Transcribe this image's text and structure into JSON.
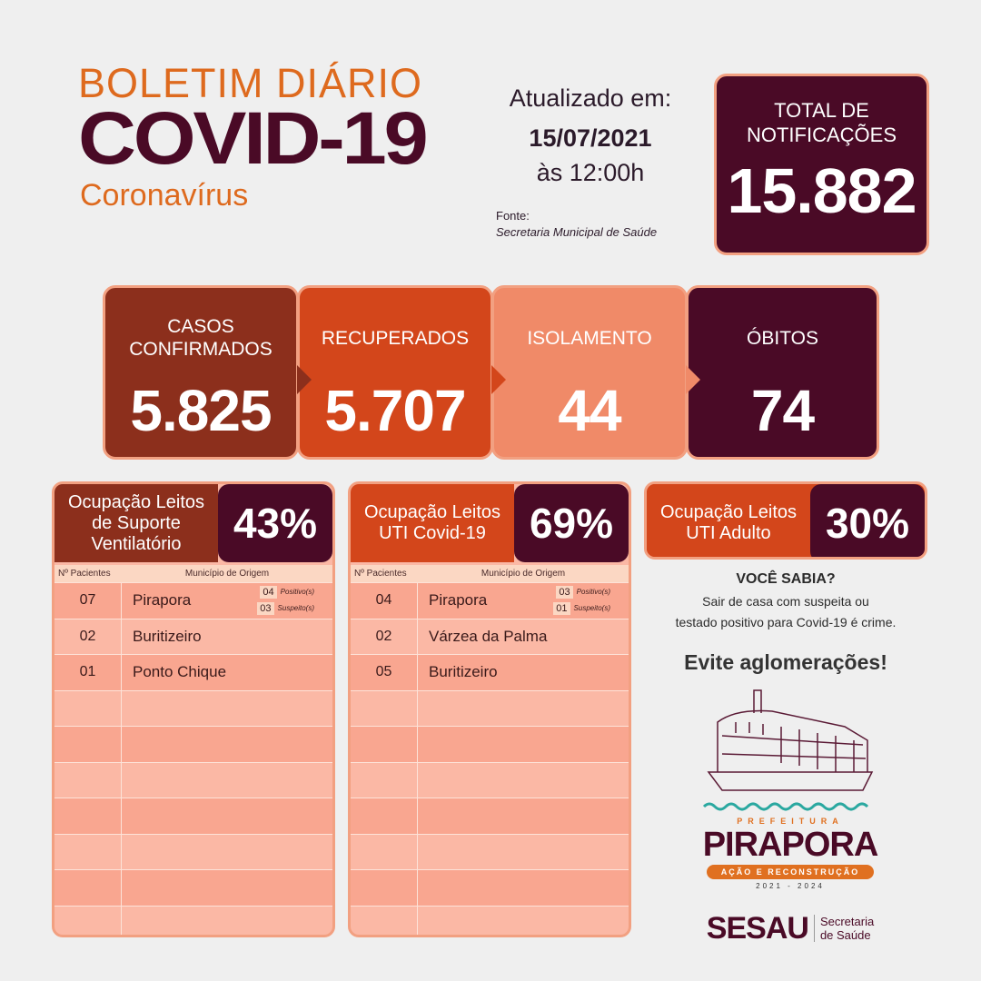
{
  "header": {
    "line1": "BOLETIM DIÁRIO",
    "line2": "COVID-19",
    "line3": "Coronavírus"
  },
  "update": {
    "label": "Atualizado em:",
    "date": "15/07/2021",
    "time": "às 12:00h",
    "source_label": "Fonte:",
    "source": "Secretaria Municipal de Saúde"
  },
  "total": {
    "label1": "TOTAL DE",
    "label2": "NOTIFICAÇÕES",
    "value": "15.882"
  },
  "cards": [
    {
      "label": "CASOS CONFIRMADOS",
      "value": "5.825",
      "color": "#8c2f1c"
    },
    {
      "label": "RECUPERADOS",
      "value": "5.707",
      "color": "#d3461b"
    },
    {
      "label": "ISOLAMENTO",
      "value": "44",
      "color": "#f08a68"
    },
    {
      "label": "ÓBITOS",
      "value": "74",
      "color": "#4a0a26"
    }
  ],
  "occupancy": [
    {
      "label": "Ocupação Leitos de Suporte Ventilatório",
      "percent": "43%",
      "percent_value": 43,
      "color": "#8c2f1c",
      "col1": "Nº Pacientes",
      "col2": "Município de Origem",
      "rows": [
        {
          "n": "07",
          "city": "Pirapora",
          "pos": "04",
          "pos_label": "Positivo(s)",
          "sus": "03",
          "sus_label": "Suspeito(s)"
        },
        {
          "n": "02",
          "city": "Buritizeiro"
        },
        {
          "n": "01",
          "city": "Ponto Chique"
        }
      ]
    },
    {
      "label": "Ocupação Leitos UTI Covid-19",
      "percent": "69%",
      "percent_value": 69,
      "color": "#d3461b",
      "col1": "Nº Pacientes",
      "col2": "Município de Origem",
      "rows": [
        {
          "n": "04",
          "city": "Pirapora",
          "pos": "03",
          "pos_label": "Positivo(s)",
          "sus": "01",
          "sus_label": "Suspeito(s)"
        },
        {
          "n": "02",
          "city": "Várzea da Palma"
        },
        {
          "n": "05",
          "city": "Buritizeiro"
        }
      ]
    },
    {
      "label": "Ocupação Leitos UTI Adulto",
      "percent": "30%",
      "percent_value": 30,
      "color": "#d3461b"
    }
  ],
  "info": {
    "title": "VOCÊ SABIA?",
    "line1": "Sair de casa com suspeita ou",
    "line2": "testado positivo para Covid-19 é crime.",
    "slogan": "Evite aglomerações!"
  },
  "logo": {
    "prefeitura": "PREFEITURA",
    "city": "PIRAPORA",
    "motto": "AÇÃO E RECONSTRUÇÃO",
    "years": "2021 - 2024",
    "sesau": "SESAU",
    "sec1": "Secretaria",
    "sec2": "de Saúde"
  }
}
